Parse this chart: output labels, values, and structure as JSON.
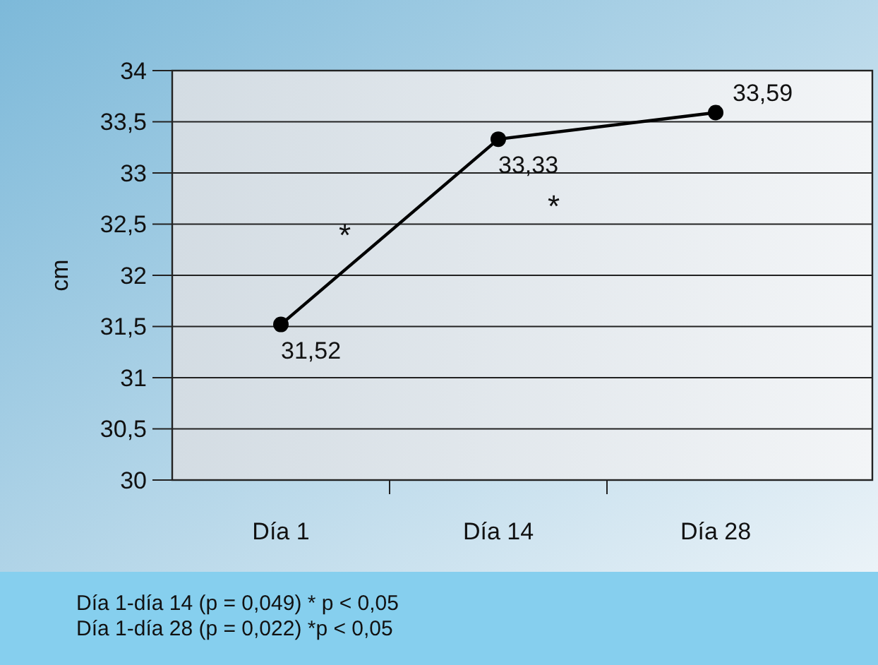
{
  "chart_data": {
    "type": "line",
    "ylabel": "cm",
    "categories": [
      "Día 1",
      "Día 14",
      "Día 28"
    ],
    "series": [
      {
        "color": "#000000",
        "values": [
          31.52,
          33.33,
          33.59
        ],
        "value_labels": [
          "31,52",
          "33,33",
          "33,59"
        ]
      }
    ],
    "ylim": [
      30,
      34
    ],
    "yticks": [
      30,
      {
        "value": 30.5,
        "label": "30,5"
      },
      31,
      {
        "value": 31.5,
        "label": "31,5"
      },
      32,
      {
        "value": 32.5,
        "label": "32,5"
      },
      33,
      {
        "value": 33.5,
        "label": "33,5"
      },
      34
    ],
    "grid": "y",
    "marker": "circle",
    "line_style": "solid",
    "annotations": [
      "*",
      "*",
      "Día 1-día 14 (p = 0,049) * p < 0,05",
      "Día 1-día 28 (p = 0,022) *p < 0,05"
    ]
  }
}
